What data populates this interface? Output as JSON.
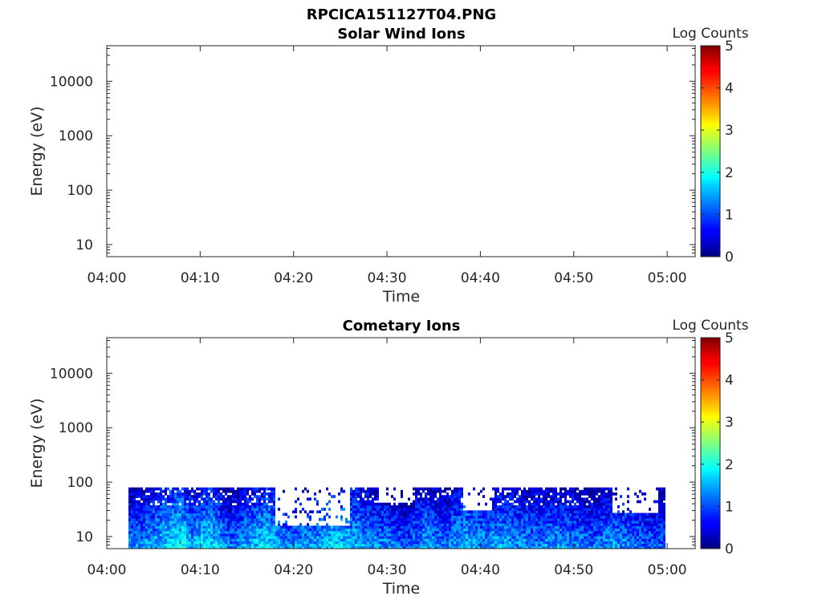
{
  "figure_title": "RPCICA151127T04.PNG",
  "chart_data": [
    {
      "type": "heatmap",
      "title": "Solar Wind Ions",
      "xlabel": "Time",
      "ylabel": "Energy (eV)",
      "x_ticks": [
        "04:00",
        "04:10",
        "04:20",
        "04:30",
        "04:40",
        "04:50",
        "05:00"
      ],
      "xlim": [
        "04:00",
        "05:03"
      ],
      "y_scale": "log",
      "y_ticks": [
        10,
        100,
        1000,
        10000
      ],
      "y_tick_labels": [
        "10",
        "100",
        "1000",
        "10000"
      ],
      "ylim": [
        6,
        45000
      ],
      "colorbar": {
        "label": "Log Counts",
        "ticks": [
          "0",
          "1",
          "2",
          "3",
          "4",
          "5"
        ],
        "range": [
          0,
          5
        ],
        "colormap": "jet"
      },
      "data_present": false
    },
    {
      "type": "heatmap",
      "title": "Cometary Ions",
      "xlabel": "Time",
      "ylabel": "Energy (eV)",
      "x_ticks": [
        "04:00",
        "04:10",
        "04:20",
        "04:30",
        "04:40",
        "04:50",
        "05:00"
      ],
      "xlim": [
        "04:00",
        "05:03"
      ],
      "y_scale": "log",
      "y_ticks": [
        10,
        100,
        1000,
        10000
      ],
      "y_tick_labels": [
        "10",
        "100",
        "1000",
        "10000"
      ],
      "ylim": [
        6,
        45000
      ],
      "colorbar": {
        "label": "Log Counts",
        "ticks": [
          "0",
          "1",
          "2",
          "3",
          "4",
          "5"
        ],
        "range": [
          0,
          5
        ],
        "colormap": "jet"
      },
      "data_present": true,
      "data_time_range": [
        "04:02:20",
        "04:59:50"
      ],
      "data_energy_range": [
        6,
        80
      ],
      "time_profile_log_counts": [
        [
          "04:03",
          1.3
        ],
        [
          "04:05",
          1.5
        ],
        [
          "04:07",
          1.8
        ],
        [
          "04:08",
          1.9
        ],
        [
          "04:09",
          1.5
        ],
        [
          "04:11",
          1.8
        ],
        [
          "04:13",
          1.2
        ],
        [
          "04:15",
          1.5
        ],
        [
          "04:17",
          1.8
        ],
        [
          "04:19",
          1.3
        ],
        [
          "04:21",
          1.4
        ],
        [
          "04:23",
          1.5
        ],
        [
          "04:24",
          1.7
        ],
        [
          "04:26",
          1.6
        ],
        [
          "04:28",
          1.4
        ],
        [
          "04:30",
          1.3
        ],
        [
          "04:32",
          1.0
        ],
        [
          "04:34",
          1.5
        ],
        [
          "04:36",
          1.2
        ],
        [
          "04:38",
          1.6
        ],
        [
          "04:40",
          1.4
        ],
        [
          "04:42",
          1.5
        ],
        [
          "04:44",
          1.4
        ],
        [
          "04:46",
          1.3
        ],
        [
          "04:48",
          1.4
        ],
        [
          "04:50",
          1.3
        ],
        [
          "04:52",
          1.2
        ],
        [
          "04:54",
          1.4
        ],
        [
          "04:56",
          1.3
        ],
        [
          "04:58",
          1.1
        ]
      ],
      "empty_patches": [
        {
          "time": [
            "04:18",
            "04:26"
          ],
          "energy_above": 15
        },
        {
          "time": [
            "04:29",
            "04:33"
          ],
          "energy_above": 40
        },
        {
          "time": [
            "04:38",
            "04:41"
          ],
          "energy_above": 30
        },
        {
          "time": [
            "04:54",
            "04:59"
          ],
          "energy_above": 25
        }
      ]
    }
  ]
}
